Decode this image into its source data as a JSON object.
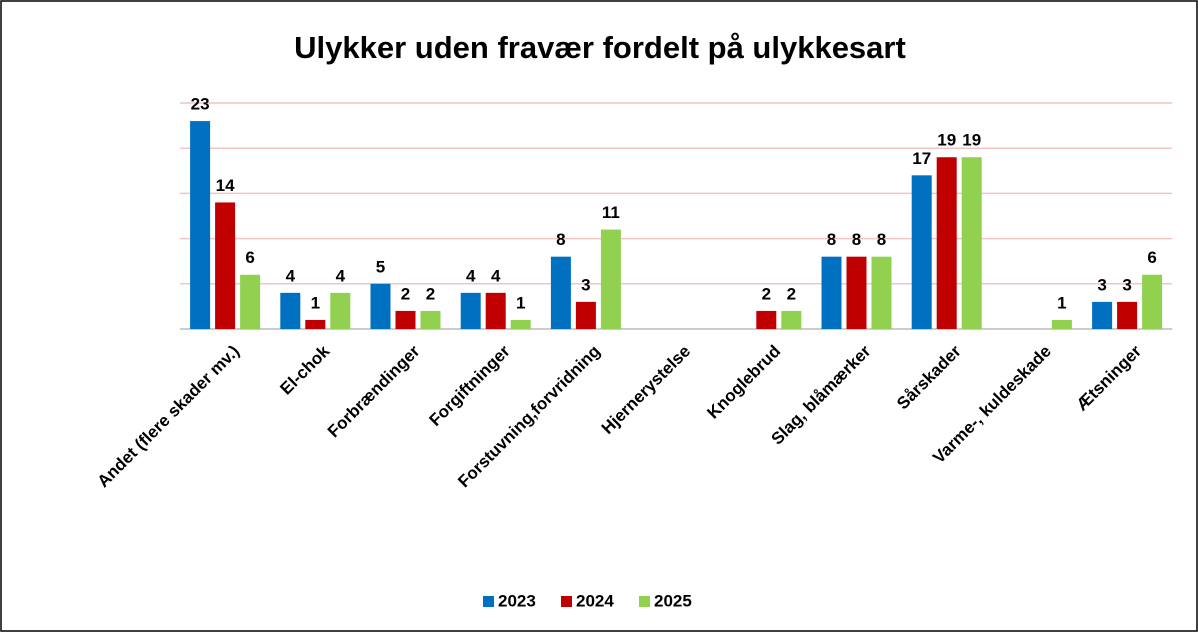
{
  "chart_data": {
    "type": "bar",
    "title": "Ulykker uden fravær fordelt på ulykkesart",
    "categories": [
      "Andet (flere  skader mv.)",
      "El-chok",
      "Forbrændinger",
      "Forgiftninger",
      "Forstuvning,forvridning",
      "Hjernerystelse",
      "Knoglebrud",
      "Slag, blåmærker",
      "Sårskader",
      "Varme-, kuldeskade",
      "Ætsninger"
    ],
    "series": [
      {
        "name": "2023",
        "color": "#0070c0",
        "values": [
          23,
          4,
          5,
          4,
          8,
          null,
          null,
          8,
          17,
          null,
          3
        ]
      },
      {
        "name": "2024",
        "color": "#c00000",
        "values": [
          14,
          1,
          2,
          4,
          3,
          null,
          2,
          8,
          19,
          null,
          3
        ]
      },
      {
        "name": "2025",
        "color": "#92d050",
        "values": [
          6,
          4,
          2,
          1,
          11,
          null,
          2,
          8,
          19,
          1,
          6
        ]
      }
    ],
    "ylim": [
      0,
      25
    ],
    "yticks": [
      0,
      5,
      10,
      15,
      20,
      25
    ],
    "grid": true,
    "legend": "bottom"
  }
}
